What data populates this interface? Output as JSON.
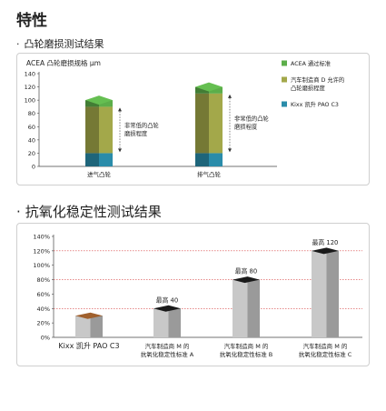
{
  "page": {
    "title": "特性",
    "section1": {
      "bullet": "·",
      "title": "凸轮磨损测试结果"
    },
    "section2": {
      "bullet": "·",
      "title": "抗氧化稳定性测试结果"
    }
  },
  "chart_data": [
    {
      "type": "bar",
      "stacked": true,
      "title": "ACEA 凸轮磨损规格 μm",
      "ylim": [
        0,
        140
      ],
      "yticks": [
        0,
        20,
        40,
        60,
        80,
        100,
        120,
        140
      ],
      "categories": [
        "进气凸轮",
        "排气凸轮"
      ],
      "series": [
        {
          "name": "ACEA 通过标准",
          "color": "#5cae4a",
          "values": [
            10,
            10
          ]
        },
        {
          "name": "汽车制造商 D 允许的凸轮磨损程度",
          "color": "#a3a84a",
          "values": [
            70,
            90
          ]
        },
        {
          "name": "Kixx 凯升 PAO C3",
          "color": "#2a8caa",
          "values": [
            20,
            20
          ]
        }
      ],
      "annotations": [
        {
          "category": "进气凸轮",
          "text": [
            "非常低的凸轮",
            "磨损程度"
          ]
        },
        {
          "category": "排气凸轮",
          "text": [
            "非常低的凸轮",
            "磨损程度"
          ]
        }
      ],
      "legend": "right"
    },
    {
      "type": "bar",
      "ylim": [
        0,
        140
      ],
      "yticks": [
        0,
        20,
        40,
        60,
        80,
        100,
        120,
        140
      ],
      "ytick_labels": [
        "0%",
        "20%",
        "40%",
        "60%",
        "80%",
        "100%",
        "120%",
        "140%"
      ],
      "categories": [
        [
          "Kixx 凯升 PAO C3"
        ],
        [
          "汽车制造商 M 的",
          "抗氧化稳定性标准 A"
        ],
        [
          "汽车制造商 M 的",
          "抗氧化稳定性标准 B"
        ],
        [
          "汽车制造商 M 的",
          "抗氧化稳定性标准 C"
        ]
      ],
      "values": [
        30,
        40,
        80,
        120
      ],
      "value_labels": [
        "",
        "最高 40",
        "最高 80",
        "最高 120"
      ],
      "reference_lines": [
        40,
        80,
        120
      ],
      "colors": {
        "bar_top_first": "#a0602d",
        "bar_top": "#1a1a1a",
        "bar_front": "#c8c8c8",
        "bar_side": "#9a9a9a",
        "reference": "#d84545"
      }
    }
  ]
}
